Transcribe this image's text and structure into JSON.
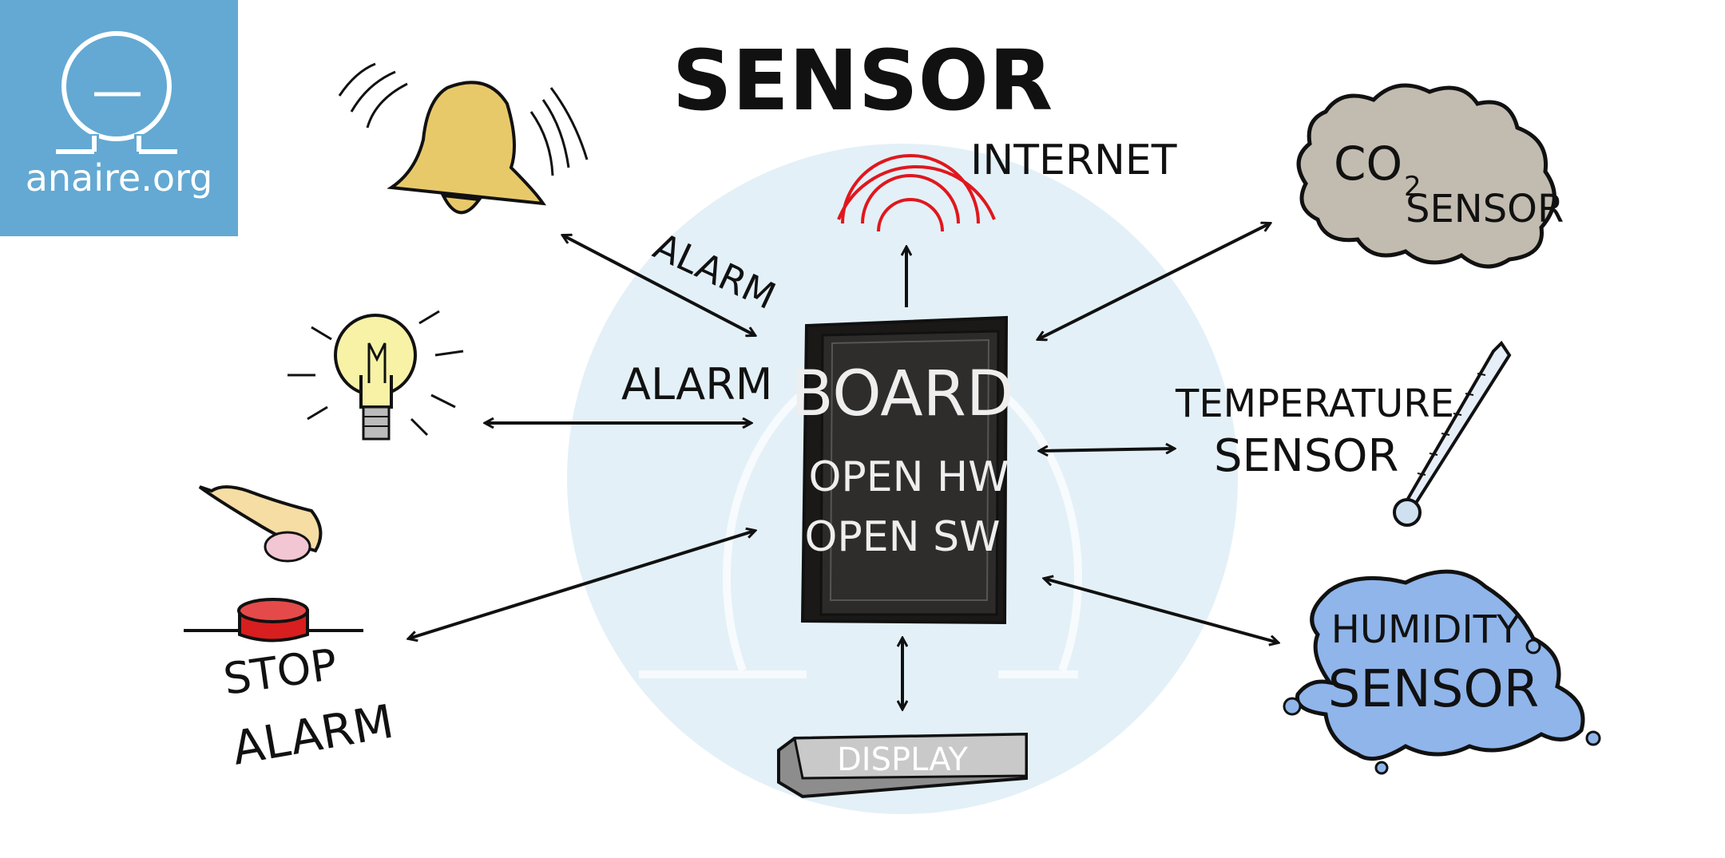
{
  "logo": {
    "text": "anaire.org",
    "color": "#63a9d3"
  },
  "title": "SENSOR",
  "labels": {
    "internet": "INTERNET",
    "alarm_top": "ALARM",
    "alarm_mid": "ALARM",
    "stop_alarm_1": "STOP",
    "stop_alarm_2": "ALARM",
    "board_1": "BOARD",
    "board_2": "OPEN HW",
    "board_3": "OPEN SW",
    "display": "DISPLAY",
    "co2_1": "CO",
    "co2_sub": "2",
    "co2_2": "SENSOR",
    "temp_1": "TEMPERATURE",
    "temp_2": "SENSOR",
    "hum_1": "HUMIDITY",
    "hum_2": "SENSOR"
  },
  "colors": {
    "background_circle": "#e3f0f7",
    "bell": "#e8c96a",
    "bulb": "#f7f2a6",
    "button_red": "#d81e1e",
    "wifi_red": "#e0171d",
    "board": "#2d2b2a",
    "co2_cloud": "#c2bcb0",
    "humidity_blob": "#8fb5ea",
    "display": "#c9c9c9"
  }
}
